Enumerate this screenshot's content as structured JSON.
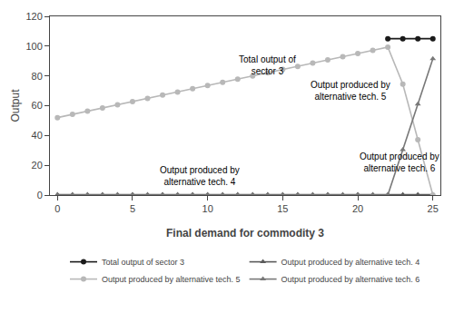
{
  "chart_data": {
    "type": "line",
    "xlabel": "Final demand for commodity 3",
    "ylabel": "Output",
    "xlim": [
      -0.5,
      25.5
    ],
    "ylim": [
      0,
      120
    ],
    "xticks": [
      0,
      5,
      10,
      15,
      20,
      25
    ],
    "yticks": [
      0,
      20,
      40,
      60,
      80,
      100,
      120
    ],
    "grid": false,
    "legend": "bottom",
    "series": [
      {
        "name": "Total output of sector 3",
        "color": "#1a1a1a",
        "marker": "circle",
        "x": [
          22,
          23,
          24,
          25
        ],
        "values": [
          105.0,
          105.0,
          105.0,
          105.0
        ]
      },
      {
        "name": "Output produced by alternative tech. 4",
        "color": "#5a5a5a",
        "marker": "triangle-up",
        "x": [
          0,
          1,
          2,
          3,
          4,
          5,
          6,
          7,
          8,
          9,
          10,
          11,
          12,
          13,
          14,
          15,
          16,
          17,
          18,
          19,
          20,
          21,
          22,
          23,
          24,
          25
        ],
        "values": [
          0.3,
          0.3,
          0.3,
          0.3,
          0.3,
          0.3,
          0.3,
          0.3,
          0.3,
          0.3,
          0.3,
          0.3,
          0.3,
          0.3,
          0.3,
          0.3,
          0.3,
          0.3,
          0.3,
          0.3,
          0.3,
          0.3,
          0.3,
          0.3,
          0.3,
          0.3
        ]
      },
      {
        "name": "Output produced by alternative tech. 5",
        "color": "#b8b8b8",
        "marker": "circle",
        "x": [
          0,
          1,
          2,
          3,
          4,
          5,
          6,
          7,
          8,
          9,
          10,
          11,
          12,
          13,
          14,
          15,
          16,
          17,
          18,
          19,
          20,
          21,
          22,
          23,
          24,
          25
        ],
        "values": [
          52,
          54.2,
          56.3,
          58.5,
          60.6,
          62.8,
          64.9,
          67.1,
          69.2,
          71.4,
          73.5,
          75.7,
          77.8,
          80.0,
          82.1,
          84.3,
          86.4,
          88.6,
          90.7,
          92.9,
          95.0,
          97.2,
          99.3,
          74.5,
          37.2,
          0.0
        ]
      },
      {
        "name": "Output produced by alternative tech. 6",
        "color": "#787878",
        "marker": "triangle-up",
        "x": [
          0,
          1,
          2,
          3,
          4,
          5,
          6,
          7,
          8,
          9,
          10,
          11,
          12,
          13,
          14,
          15,
          16,
          17,
          18,
          19,
          20,
          21,
          22,
          23,
          24,
          25
        ],
        "values": [
          0.0,
          0.0,
          0.0,
          0.0,
          0.0,
          0.0,
          0.0,
          0.0,
          0.0,
          0.0,
          0.0,
          0.0,
          0.0,
          0.0,
          0.0,
          0.0,
          0.0,
          0.0,
          0.0,
          0.0,
          0.0,
          0.0,
          0.0,
          30.5,
          61.0,
          91.5
        ]
      }
    ],
    "annotations": [
      {
        "text": "Total output of\nsector 3",
        "x": 14.0,
        "y": 87
      },
      {
        "text": "Output produced by\nalternative tech. 5",
        "x": 19.5,
        "y": 70
      },
      {
        "text": "Output produced by\nalternative tech. 4",
        "x": 9.5,
        "y": 13
      },
      {
        "text": "Output produced by\nalternative tech. 6",
        "x": 22.8,
        "y": 22
      }
    ]
  }
}
